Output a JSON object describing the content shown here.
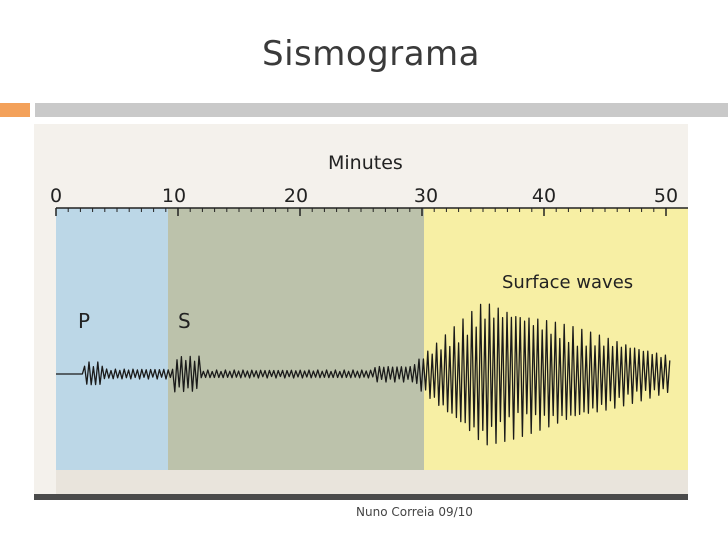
{
  "slide": {
    "title": "Sismograma",
    "footer": "Nuno Correia 09/10"
  },
  "diagram": {
    "axis_title": "Minutes",
    "ticks": [
      "0",
      "10",
      "20",
      "30",
      "40",
      "50"
    ],
    "labels": {
      "p_wave": "P",
      "s_wave": "S",
      "surface_waves": "Surface waves"
    },
    "colors": {
      "p_zone": "#bcd7e7",
      "s_zone": "#bcc2ab",
      "surface_zone": "#f7efa4",
      "trace": "#1a1a1a",
      "accent": "#f3a15a"
    }
  }
}
